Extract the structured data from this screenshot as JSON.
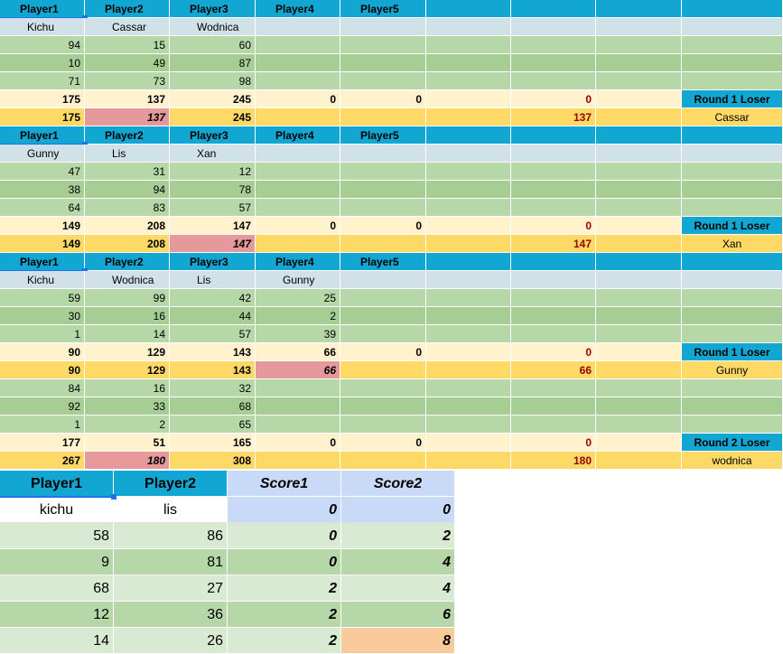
{
  "colors": {
    "header": "#12a7d3",
    "names": "#d0e1e8",
    "data_light": "#b6d7a8",
    "data_dark": "#a6cd94",
    "total": "#fff2cc",
    "result": "#ffd966",
    "lowest": "#e6999a",
    "score_header": "#c9daf8",
    "winner": "#f9cb9c",
    "accent_red": "#990000"
  },
  "headers": [
    "Player1",
    "Player2",
    "Player3",
    "Player4",
    "Player5"
  ],
  "groups": [
    {
      "names": [
        "Kichu",
        "Cassar",
        "Wodnica",
        "",
        ""
      ],
      "rows": [
        [
          "94",
          "15",
          "60",
          "",
          ""
        ],
        [
          "10",
          "49",
          "87",
          "",
          ""
        ],
        [
          "71",
          "73",
          "98",
          "",
          ""
        ]
      ],
      "totals": [
        "175",
        "137",
        "245",
        "0",
        "0"
      ],
      "totals_extra": "0",
      "loser_label": "Round 1 Loser",
      "result": [
        "175",
        "137",
        "245",
        "",
        ""
      ],
      "result_extra": "137",
      "loser_name": "Cassar",
      "low_index": 1
    },
    {
      "names": [
        "Gunny",
        "Lis",
        "Xan",
        "",
        ""
      ],
      "rows": [
        [
          "47",
          "31",
          "12",
          "",
          ""
        ],
        [
          "38",
          "94",
          "78",
          "",
          ""
        ],
        [
          "64",
          "83",
          "57",
          "",
          ""
        ]
      ],
      "totals": [
        "149",
        "208",
        "147",
        "0",
        "0"
      ],
      "totals_extra": "0",
      "loser_label": "Round 1 Loser",
      "result": [
        "149",
        "208",
        "147",
        "",
        ""
      ],
      "result_extra": "147",
      "loser_name": "Xan",
      "low_index": 2
    },
    {
      "names": [
        "Kichu",
        "Wodnica",
        "Lis",
        "Gunny",
        ""
      ],
      "rows": [
        [
          "59",
          "99",
          "42",
          "25",
          ""
        ],
        [
          "30",
          "16",
          "44",
          "2",
          ""
        ],
        [
          "1",
          "14",
          "57",
          "39",
          ""
        ]
      ],
      "totals": [
        "90",
        "129",
        "143",
        "66",
        "0"
      ],
      "totals_extra": "0",
      "loser_label": "Round 1 Loser",
      "result": [
        "90",
        "129",
        "143",
        "66",
        ""
      ],
      "result_extra": "66",
      "loser_name": "Gunny",
      "low_index": 3,
      "round2": {
        "rows": [
          [
            "84",
            "16",
            "32",
            "",
            ""
          ],
          [
            "92",
            "33",
            "68",
            "",
            ""
          ],
          [
            "1",
            "2",
            "65",
            "",
            ""
          ]
        ],
        "totals": [
          "177",
          "51",
          "165",
          "0",
          "0"
        ],
        "totals_extra": "0",
        "loser_label": "Round 2 Loser",
        "result": [
          "267",
          "180",
          "308",
          "",
          ""
        ],
        "result_extra": "180",
        "loser_name": "wodnica",
        "low_index": 1
      }
    }
  ],
  "final": {
    "headers": [
      "Player1",
      "Player2",
      "Score1",
      "Score2"
    ],
    "names": [
      "kichu",
      "lis",
      "0",
      "0"
    ],
    "rows": [
      [
        "58",
        "86",
        "0",
        "2"
      ],
      [
        "9",
        "81",
        "0",
        "4"
      ],
      [
        "68",
        "27",
        "2",
        "4"
      ],
      [
        "12",
        "36",
        "2",
        "6"
      ],
      [
        "14",
        "26",
        "2",
        "8"
      ]
    ]
  }
}
